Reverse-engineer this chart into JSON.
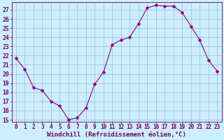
{
  "x": [
    0,
    1,
    2,
    3,
    4,
    5,
    6,
    7,
    8,
    9,
    10,
    11,
    12,
    13,
    14,
    15,
    16,
    17,
    18,
    19,
    20,
    21,
    22,
    23
  ],
  "y": [
    21.7,
    20.5,
    18.5,
    18.2,
    17.0,
    16.5,
    15.0,
    15.2,
    16.3,
    18.9,
    20.2,
    23.2,
    23.7,
    24.0,
    25.5,
    27.2,
    27.5,
    27.4,
    27.4,
    26.7,
    25.2,
    23.7,
    21.5,
    20.3
  ],
  "line_color": "#880088",
  "marker": "D",
  "marker_size": 2.5,
  "bg_color": "#cceeff",
  "grid_color": "#99bbcc",
  "xlabel": "Windchill (Refroidissement éolien,°C)",
  "ylim_min": 14.8,
  "ylim_max": 27.8,
  "xlim_min": -0.5,
  "xlim_max": 23.5,
  "yticks": [
    15,
    16,
    17,
    18,
    19,
    20,
    21,
    22,
    23,
    24,
    25,
    26,
    27
  ],
  "xticks": [
    0,
    1,
    2,
    3,
    4,
    5,
    6,
    7,
    8,
    9,
    10,
    11,
    12,
    13,
    14,
    15,
    16,
    17,
    18,
    19,
    20,
    21,
    22,
    23
  ],
  "tick_color": "#660066",
  "label_color": "#660066",
  "xlabel_fontsize": 6.5,
  "tick_fontsize": 5.5,
  "ytick_fontsize": 5.8
}
